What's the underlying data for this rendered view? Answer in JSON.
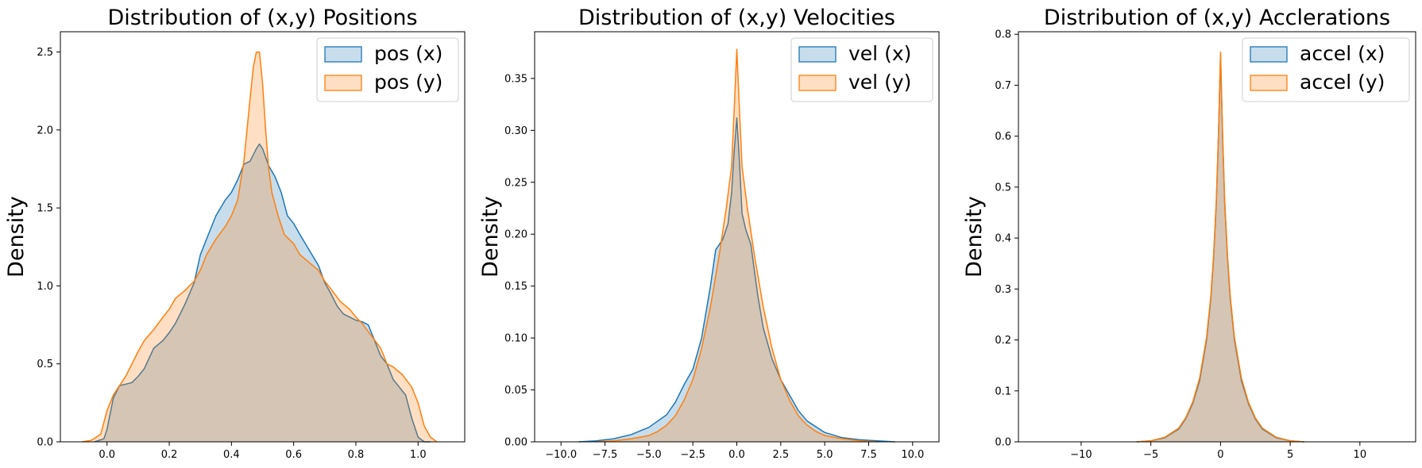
{
  "chart_data": [
    {
      "type": "area",
      "title": "Distribution of (x,y) Positions",
      "xlabel": "",
      "ylabel": "Density",
      "xlim": [
        -0.15,
        1.15
      ],
      "ylim": [
        0,
        2.63
      ],
      "xticks": [
        0.0,
        0.2,
        0.4,
        0.6,
        0.8,
        1.0
      ],
      "xtick_labels": [
        "0.0",
        "0.2",
        "0.4",
        "0.6",
        "0.8",
        "1.0"
      ],
      "yticks": [
        0.0,
        0.5,
        1.0,
        1.5,
        2.0,
        2.5
      ],
      "ytick_labels": [
        "0.0",
        "0.5",
        "1.0",
        "1.5",
        "2.0",
        "2.5"
      ],
      "legend_position": "top-right",
      "series": [
        {
          "name": "pos (x)",
          "color": "#1f77b4",
          "x": [
            -0.04,
            -0.01,
            0.0,
            0.02,
            0.04,
            0.06,
            0.08,
            0.1,
            0.12,
            0.15,
            0.18,
            0.2,
            0.22,
            0.25,
            0.28,
            0.3,
            0.32,
            0.35,
            0.38,
            0.4,
            0.42,
            0.44,
            0.46,
            0.48,
            0.49,
            0.5,
            0.52,
            0.54,
            0.56,
            0.58,
            0.6,
            0.62,
            0.65,
            0.68,
            0.7,
            0.72,
            0.74,
            0.76,
            0.78,
            0.8,
            0.82,
            0.84,
            0.86,
            0.88,
            0.9,
            0.92,
            0.94,
            0.96,
            0.98,
            1.0,
            1.02,
            1.04
          ],
          "y": [
            0.0,
            0.02,
            0.08,
            0.28,
            0.36,
            0.37,
            0.38,
            0.42,
            0.47,
            0.6,
            0.65,
            0.7,
            0.76,
            0.88,
            1.02,
            1.2,
            1.3,
            1.45,
            1.55,
            1.6,
            1.68,
            1.78,
            1.8,
            1.88,
            1.91,
            1.88,
            1.77,
            1.7,
            1.6,
            1.45,
            1.4,
            1.33,
            1.23,
            1.13,
            1.02,
            0.95,
            0.87,
            0.82,
            0.8,
            0.78,
            0.77,
            0.75,
            0.65,
            0.55,
            0.5,
            0.4,
            0.35,
            0.3,
            0.15,
            0.03,
            0.0,
            0.0
          ]
        },
        {
          "name": "pos (y)",
          "color": "#ff7f0e",
          "x": [
            -0.08,
            -0.05,
            -0.02,
            0.0,
            0.02,
            0.04,
            0.06,
            0.08,
            0.1,
            0.12,
            0.15,
            0.18,
            0.2,
            0.22,
            0.25,
            0.28,
            0.3,
            0.32,
            0.35,
            0.38,
            0.4,
            0.42,
            0.44,
            0.46,
            0.47,
            0.48,
            0.49,
            0.5,
            0.51,
            0.52,
            0.53,
            0.55,
            0.57,
            0.6,
            0.62,
            0.65,
            0.68,
            0.7,
            0.72,
            0.75,
            0.78,
            0.8,
            0.82,
            0.85,
            0.88,
            0.9,
            0.92,
            0.95,
            0.98,
            1.0,
            1.02,
            1.04,
            1.06
          ],
          "y": [
            0.0,
            0.01,
            0.05,
            0.2,
            0.3,
            0.36,
            0.42,
            0.5,
            0.58,
            0.65,
            0.72,
            0.8,
            0.85,
            0.92,
            0.97,
            1.03,
            1.1,
            1.2,
            1.3,
            1.38,
            1.45,
            1.55,
            1.8,
            2.2,
            2.4,
            2.5,
            2.5,
            2.3,
            2.0,
            1.75,
            1.6,
            1.45,
            1.33,
            1.27,
            1.2,
            1.15,
            1.1,
            1.03,
            0.98,
            0.9,
            0.85,
            0.8,
            0.76,
            0.68,
            0.6,
            0.5,
            0.48,
            0.43,
            0.35,
            0.25,
            0.1,
            0.03,
            0.0
          ]
        }
      ]
    },
    {
      "type": "area",
      "title": "Distribution of (x,y) Velocities",
      "xlabel": "",
      "ylabel": "Density",
      "xlim": [
        -11.5,
        11.5
      ],
      "ylim": [
        0,
        0.395
      ],
      "xticks": [
        -10.0,
        -7.5,
        -5.0,
        -2.5,
        0.0,
        2.5,
        5.0,
        7.5,
        10.0
      ],
      "xtick_labels": [
        "−10.0",
        "−7.5",
        "−5.0",
        "−2.5",
        "0.0",
        "2.5",
        "5.0",
        "7.5",
        "10.0"
      ],
      "yticks": [
        0.0,
        0.05,
        0.1,
        0.15,
        0.2,
        0.25,
        0.3,
        0.35
      ],
      "ytick_labels": [
        "0.00",
        "0.05",
        "0.10",
        "0.15",
        "0.20",
        "0.25",
        "0.30",
        "0.35"
      ],
      "legend_position": "top-right",
      "series": [
        {
          "name": "vel (x)",
          "color": "#1f77b4",
          "x": [
            -9.0,
            -8.0,
            -7.0,
            -6.0,
            -5.0,
            -4.0,
            -3.5,
            -3.0,
            -2.5,
            -2.0,
            -1.5,
            -1.2,
            -1.0,
            -0.8,
            -0.5,
            -0.3,
            -0.15,
            0.0,
            0.15,
            0.3,
            0.5,
            0.8,
            1.0,
            1.2,
            1.5,
            2.0,
            2.5,
            3.0,
            3.5,
            4.0,
            5.0,
            6.0,
            7.0,
            8.0,
            9.0
          ],
          "y": [
            0.0,
            0.001,
            0.003,
            0.007,
            0.014,
            0.026,
            0.038,
            0.055,
            0.07,
            0.1,
            0.15,
            0.185,
            0.19,
            0.195,
            0.21,
            0.24,
            0.28,
            0.312,
            0.27,
            0.22,
            0.205,
            0.19,
            0.165,
            0.14,
            0.11,
            0.08,
            0.06,
            0.045,
            0.03,
            0.02,
            0.009,
            0.004,
            0.002,
            0.001,
            0.0
          ]
        },
        {
          "name": "vel (y)",
          "color": "#ff7f0e",
          "x": [
            -8.0,
            -7.0,
            -6.0,
            -5.0,
            -4.5,
            -4.0,
            -3.5,
            -3.0,
            -2.5,
            -2.0,
            -1.5,
            -1.0,
            -0.6,
            -0.3,
            -0.15,
            0.0,
            0.15,
            0.3,
            0.6,
            1.0,
            1.5,
            2.0,
            2.5,
            3.0,
            3.5,
            4.0,
            4.5,
            5.0,
            6.0,
            7.0,
            8.0
          ],
          "y": [
            0.0,
            0.001,
            0.003,
            0.006,
            0.01,
            0.016,
            0.025,
            0.04,
            0.06,
            0.09,
            0.13,
            0.18,
            0.225,
            0.265,
            0.32,
            0.378,
            0.32,
            0.265,
            0.225,
            0.18,
            0.13,
            0.09,
            0.06,
            0.04,
            0.025,
            0.016,
            0.01,
            0.006,
            0.003,
            0.001,
            0.0
          ]
        }
      ]
    },
    {
      "type": "area",
      "title": "Distribution of (x,y) Acclerations",
      "xlabel": "",
      "ylabel": "Density",
      "xlim": [
        -14.5,
        14.0
      ],
      "ylim": [
        0,
        0.805
      ],
      "xticks": [
        -10,
        -5,
        0,
        5,
        10
      ],
      "xtick_labels": [
        "−10",
        "−5",
        "0",
        "5",
        "10"
      ],
      "yticks": [
        0.0,
        0.1,
        0.2,
        0.3,
        0.4,
        0.5,
        0.6,
        0.7,
        0.8
      ],
      "ytick_labels": [
        "0.0",
        "0.1",
        "0.2",
        "0.3",
        "0.4",
        "0.5",
        "0.6",
        "0.7",
        "0.8"
      ],
      "legend_position": "top-right",
      "series": [
        {
          "name": "accel (x)",
          "color": "#1f77b4",
          "x": [
            -6.0,
            -5.0,
            -4.0,
            -3.0,
            -2.5,
            -2.0,
            -1.5,
            -1.0,
            -0.7,
            -0.5,
            -0.3,
            -0.15,
            0.0,
            0.15,
            0.3,
            0.5,
            0.7,
            1.0,
            1.5,
            2.0,
            2.5,
            3.0,
            4.0,
            5.0,
            6.0
          ],
          "y": [
            0.0,
            0.002,
            0.008,
            0.025,
            0.045,
            0.075,
            0.12,
            0.2,
            0.28,
            0.36,
            0.47,
            0.6,
            0.76,
            0.6,
            0.47,
            0.36,
            0.28,
            0.2,
            0.12,
            0.075,
            0.045,
            0.025,
            0.008,
            0.002,
            0.0
          ]
        },
        {
          "name": "accel (y)",
          "color": "#ff7f0e",
          "x": [
            -6.0,
            -5.0,
            -4.0,
            -3.0,
            -2.5,
            -2.0,
            -1.5,
            -1.0,
            -0.7,
            -0.5,
            -0.3,
            -0.15,
            0.0,
            0.15,
            0.3,
            0.5,
            0.7,
            1.0,
            1.5,
            2.0,
            2.5,
            3.0,
            4.0,
            5.0,
            6.0
          ],
          "y": [
            0.0,
            0.002,
            0.009,
            0.027,
            0.047,
            0.078,
            0.125,
            0.205,
            0.285,
            0.365,
            0.475,
            0.605,
            0.765,
            0.605,
            0.475,
            0.365,
            0.285,
            0.205,
            0.125,
            0.078,
            0.047,
            0.027,
            0.009,
            0.002,
            0.0
          ]
        }
      ]
    }
  ]
}
